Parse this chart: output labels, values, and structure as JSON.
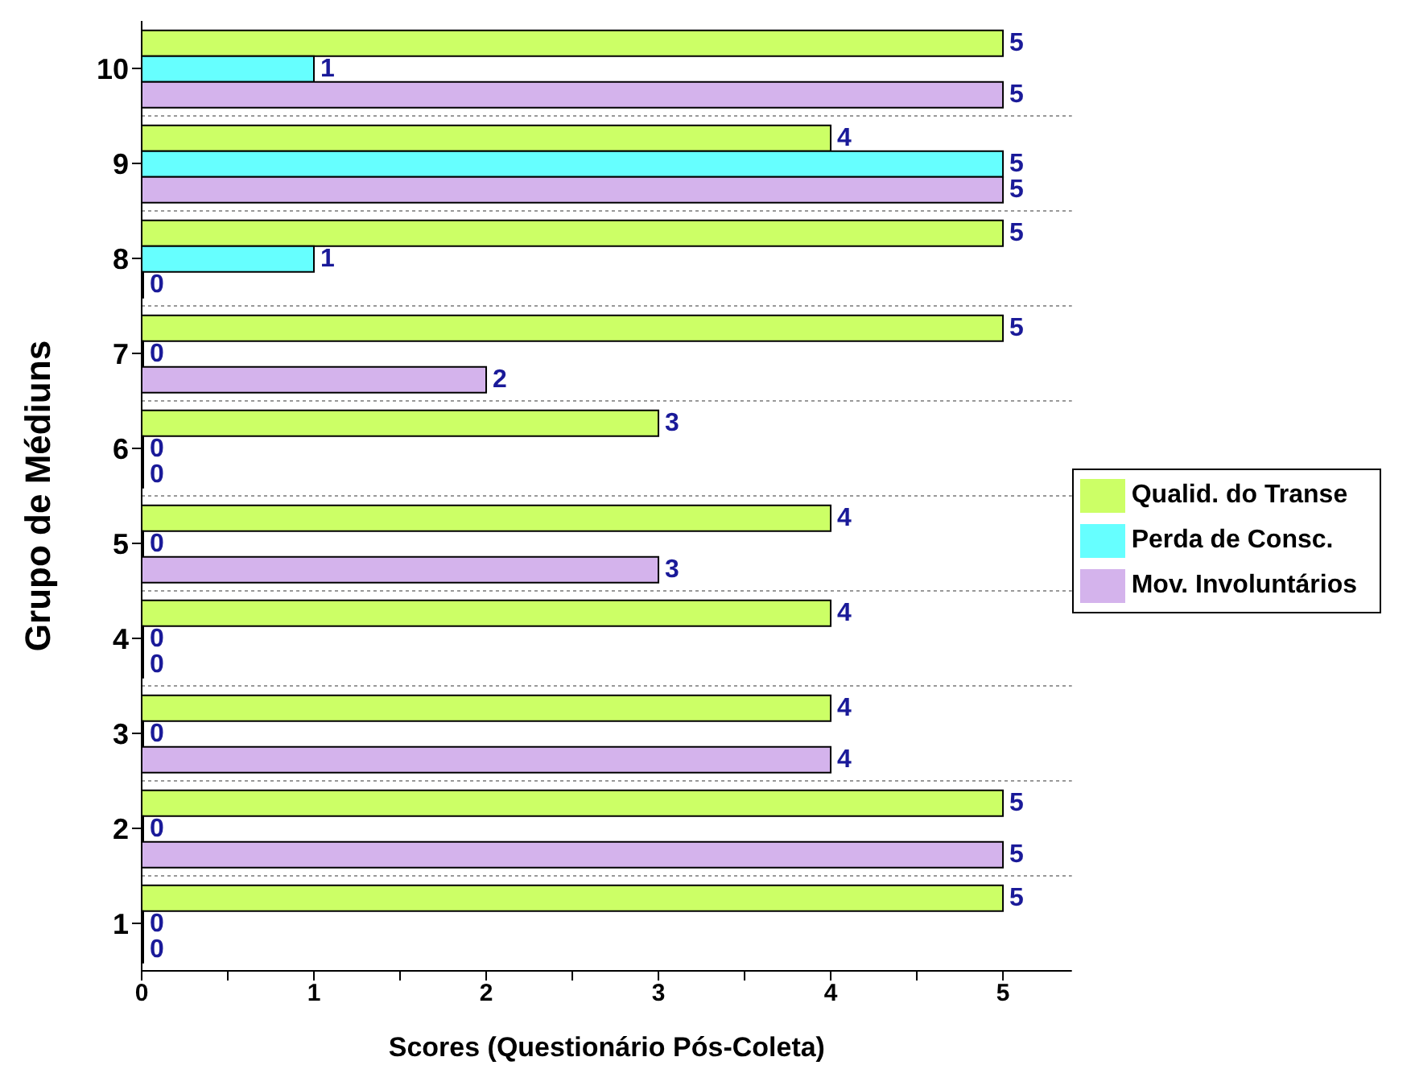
{
  "chart_data": {
    "type": "bar",
    "orientation": "horizontal",
    "xlabel": "Scores (Questionário Pós-Coleta)",
    "ylabel": "Grupo de Médiuns",
    "categories": [
      "10",
      "9",
      "8",
      "7",
      "6",
      "5",
      "4",
      "3",
      "2",
      "1"
    ],
    "series": [
      {
        "name": "Qualid. do Transe",
        "color": "#ccff66",
        "values": [
          5,
          4,
          5,
          5,
          3,
          4,
          4,
          4,
          5,
          5
        ]
      },
      {
        "name": "Perda de Consc.",
        "color": "#66ffff",
        "values": [
          1,
          5,
          1,
          0,
          0,
          0,
          0,
          0,
          0,
          0
        ]
      },
      {
        "name": "Mov. Involuntários",
        "color": "#d4b3ec",
        "values": [
          5,
          5,
          0,
          2,
          0,
          3,
          0,
          4,
          5,
          0
        ]
      }
    ],
    "xlim": [
      0,
      5.4
    ],
    "xticks": [
      0,
      {
        "value": 0.5,
        "label": null
      },
      1,
      {
        "value": 1.5,
        "label": null
      },
      2,
      {
        "value": 2.5,
        "label": null
      },
      3,
      {
        "value": 3.5,
        "label": null
      },
      4,
      {
        "value": 4.5,
        "label": null
      },
      5
    ],
    "data_labels": true,
    "grid": "y",
    "legend": "right"
  }
}
